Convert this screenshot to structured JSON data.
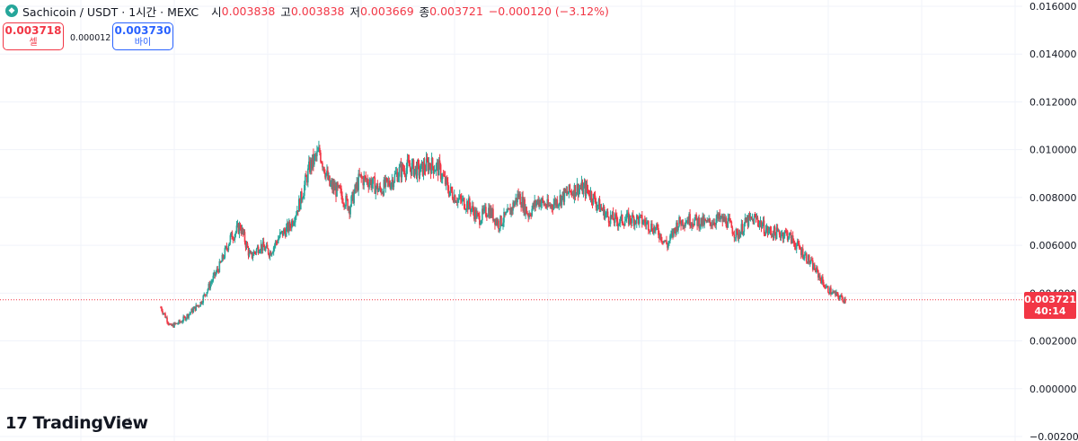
{
  "header": {
    "title": "Sachicoin / USDT · 1시간 · MEXC",
    "ohlc": [
      {
        "label": "시",
        "value": "0.003838"
      },
      {
        "label": "고",
        "value": "0.003838"
      },
      {
        "label": "저",
        "value": "0.003669"
      },
      {
        "label": "종",
        "value": "0.003721"
      }
    ],
    "change": "−0.000120 (−3.12%)"
  },
  "trade": {
    "sell_price": "0.003718",
    "sell_label": "셀",
    "spread": "0.000012",
    "buy_price": "0.003730",
    "buy_label": "바이"
  },
  "last_price": {
    "price": "0.003721",
    "countdown": "40:14"
  },
  "branding": {
    "name": "TradingView"
  },
  "colors": {
    "up": "#26a69a",
    "down": "#f23645",
    "grid": "#f0f3fa",
    "axis_text": "#131722"
  },
  "chart_data": {
    "type": "candlestick",
    "title": "Sachicoin / USDT · 1시간 · MEXC",
    "ylim": [
      -0.002,
      0.0165
    ],
    "y_ticks": [
      "0.016000",
      "0.014000",
      "0.012000",
      "0.010000",
      "0.008000",
      "0.006000",
      "0.004000",
      "0.002000",
      "0.000000",
      "−0.002000"
    ],
    "y_tick_values": [
      0.016,
      0.014,
      0.012,
      0.01,
      0.008,
      0.006,
      0.004,
      0.002,
      0.0,
      -0.002
    ],
    "grid": true,
    "last_price_line": 0.003721,
    "series": [
      {
        "values": [
          0.0034,
          0.0026,
          0.0028,
          0.0032,
          0.0036,
          0.0044,
          0.0052,
          0.0063,
          0.0068,
          0.0055,
          0.006,
          0.0057,
          0.0064,
          0.0068,
          0.0078,
          0.0093,
          0.0099,
          0.0085,
          0.0082,
          0.0076,
          0.0088,
          0.0087,
          0.0083,
          0.0086,
          0.0091,
          0.0093,
          0.0091,
          0.0094,
          0.0092,
          0.0083,
          0.0079,
          0.0077,
          0.0071,
          0.0075,
          0.0069,
          0.0073,
          0.0081,
          0.0073,
          0.0079,
          0.0076,
          0.0079,
          0.0082,
          0.0084,
          0.0083,
          0.0077,
          0.0072,
          0.007,
          0.0071,
          0.0071,
          0.0069,
          0.0066,
          0.006,
          0.0069,
          0.0071,
          0.007,
          0.0069,
          0.0071,
          0.007,
          0.0064,
          0.007,
          0.0071,
          0.0066,
          0.0065,
          0.0065,
          0.006,
          0.0055,
          0.0049,
          0.0042,
          0.0039,
          0.0037
        ]
      }
    ]
  }
}
